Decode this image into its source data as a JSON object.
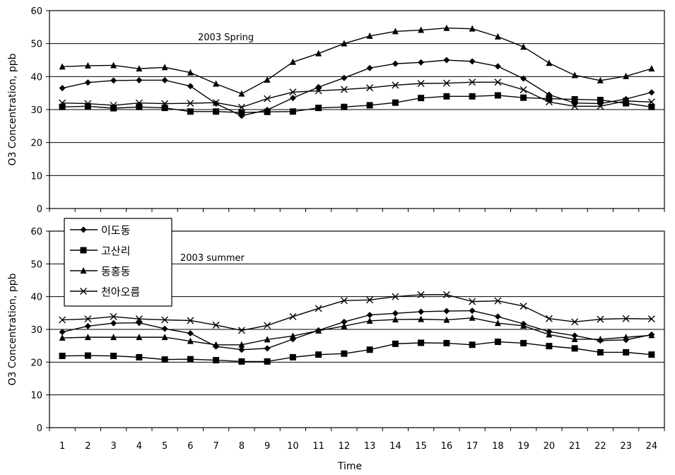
{
  "x_axis_label": "Time",
  "chart_data": [
    {
      "type": "line",
      "title": "2003 Spring",
      "xlabel": "Time",
      "ylabel": "O3 Concentration, ppb",
      "ylim": [
        0,
        60
      ],
      "yticks": [
        0,
        10,
        20,
        30,
        40,
        50,
        60
      ],
      "grid": true,
      "x": [
        1,
        2,
        3,
        4,
        5,
        6,
        7,
        8,
        9,
        10,
        11,
        12,
        13,
        14,
        15,
        16,
        17,
        18,
        19,
        20,
        21,
        22,
        23,
        24
      ],
      "series": [
        {
          "name": "이도동",
          "marker": "diamond",
          "values": [
            36.5,
            38.2,
            38.8,
            38.9,
            38.9,
            37.1,
            31.8,
            28.1,
            29.9,
            33.5,
            36.8,
            39.6,
            42.6,
            43.9,
            44.3,
            45.0,
            44.6,
            43.1,
            39.4,
            34.5,
            32.0,
            31.8,
            33.2,
            35.2
          ]
        },
        {
          "name": "고산리",
          "marker": "square",
          "values": [
            30.8,
            31.0,
            30.4,
            30.8,
            30.5,
            29.4,
            29.4,
            29.1,
            29.3,
            29.4,
            30.5,
            30.8,
            31.3,
            32.1,
            33.5,
            34.0,
            34.0,
            34.3,
            33.6,
            33.3,
            33.1,
            32.9,
            31.9,
            30.8
          ]
        },
        {
          "name": "동홍동",
          "marker": "triangle",
          "values": [
            43.0,
            43.3,
            43.4,
            42.4,
            42.8,
            41.2,
            37.8,
            34.8,
            39.0,
            44.4,
            47.0,
            50.0,
            52.3,
            53.7,
            54.1,
            54.7,
            54.5,
            52.1,
            49.0,
            44.1,
            40.4,
            38.8,
            40.1,
            42.4
          ]
        },
        {
          "name": "천아오름",
          "marker": "x",
          "values": [
            32.0,
            31.8,
            31.3,
            32.0,
            31.8,
            31.9,
            32.1,
            30.7,
            33.3,
            35.3,
            35.7,
            36.1,
            36.6,
            37.4,
            37.9,
            38.0,
            38.3,
            38.3,
            36.0,
            32.3,
            31.0,
            31.0,
            32.6,
            32.3
          ]
        }
      ]
    },
    {
      "type": "line",
      "title": "2003 summer",
      "xlabel": "Time",
      "ylabel": "O3 Concentration, ppb",
      "ylim": [
        0,
        60
      ],
      "yticks": [
        0,
        10,
        20,
        30,
        40,
        50,
        60
      ],
      "grid": true,
      "legend": "top-left",
      "x": [
        1,
        2,
        3,
        4,
        5,
        6,
        7,
        8,
        9,
        10,
        11,
        12,
        13,
        14,
        15,
        16,
        17,
        18,
        19,
        20,
        21,
        22,
        23,
        24
      ],
      "series": [
        {
          "name": "이도동",
          "marker": "diamond",
          "values": [
            29.2,
            31.0,
            31.9,
            32.0,
            30.2,
            28.8,
            24.8,
            23.8,
            24.2,
            27.0,
            29.7,
            32.3,
            34.4,
            34.9,
            35.4,
            35.6,
            35.7,
            33.9,
            31.7,
            29.3,
            28.1,
            26.6,
            26.8,
            28.4
          ]
        },
        {
          "name": "고산리",
          "marker": "square",
          "values": [
            21.9,
            22.0,
            21.9,
            21.5,
            20.8,
            20.9,
            20.6,
            20.2,
            20.2,
            21.5,
            22.3,
            22.6,
            23.8,
            25.6,
            25.9,
            25.8,
            25.3,
            26.2,
            25.8,
            24.9,
            24.2,
            23.0,
            23.0,
            22.3
          ]
        },
        {
          "name": "동홍동",
          "marker": "triangle",
          "values": [
            27.4,
            27.6,
            27.6,
            27.6,
            27.6,
            26.4,
            25.3,
            25.3,
            26.9,
            28.0,
            29.6,
            31.0,
            32.6,
            33.0,
            33.1,
            32.9,
            33.5,
            31.9,
            31.1,
            28.4,
            27.0,
            27.0,
            27.6,
            28.2
          ]
        },
        {
          "name": "천아오름",
          "marker": "x",
          "values": [
            32.9,
            33.2,
            33.9,
            33.2,
            32.9,
            32.7,
            31.3,
            29.7,
            31.2,
            33.9,
            36.4,
            38.8,
            39.0,
            40.0,
            40.6,
            40.6,
            38.5,
            38.7,
            37.1,
            33.3,
            32.3,
            33.1,
            33.3,
            33.2
          ]
        }
      ]
    }
  ]
}
